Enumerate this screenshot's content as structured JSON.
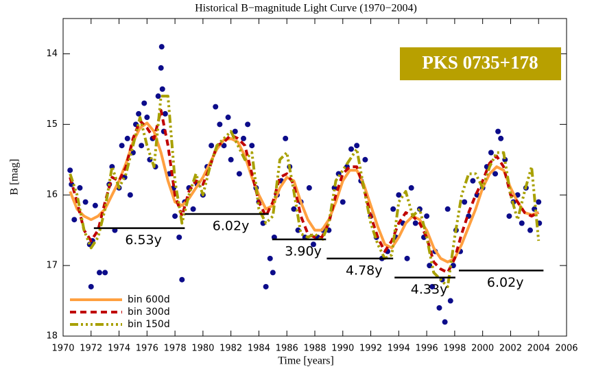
{
  "chart_data": {
    "type": "scatter",
    "title": "Historical B−magnitude Light Curve (1970−2004)",
    "x_label": "Time [years]",
    "y_label": "B [mag]",
    "annotation": "PKS 0735+178",
    "annotation_color": "#b8a000",
    "xlim": [
      1970,
      2006
    ],
    "xticks": [
      1970,
      1972,
      1974,
      1976,
      1978,
      1980,
      1982,
      1984,
      1986,
      1988,
      1990,
      1992,
      1994,
      1996,
      1998,
      2000,
      2002,
      2004,
      2006
    ],
    "ylim": [
      13.5,
      18
    ],
    "y_inverted": true,
    "yticks": [
      14,
      15,
      16,
      17,
      18
    ],
    "legend": "lower left",
    "points": {
      "color": "#0c0c8a",
      "x": [
        1970.5,
        1970.6,
        1970.8,
        1971.2,
        1971.6,
        1971.9,
        1972.0,
        1972.1,
        1972.3,
        1972.6,
        1973.0,
        1973.3,
        1973.5,
        1973.7,
        1974.0,
        1974.2,
        1974.4,
        1974.6,
        1974.8,
        1975.0,
        1975.2,
        1975.4,
        1975.6,
        1975.8,
        1976.0,
        1976.2,
        1976.4,
        1976.6,
        1976.8,
        1977.0,
        1977.05,
        1977.1,
        1977.2,
        1977.3,
        1977.6,
        1977.9,
        1978.0,
        1978.3,
        1978.5,
        1978.7,
        1979.0,
        1979.3,
        1979.6,
        1980.0,
        1980.3,
        1980.6,
        1980.9,
        1981.2,
        1981.5,
        1981.8,
        1982.0,
        1982.3,
        1982.6,
        1982.9,
        1983.2,
        1983.5,
        1983.8,
        1984.0,
        1984.3,
        1984.5,
        1984.8,
        1985.0,
        1985.1,
        1985.3,
        1985.6,
        1985.9,
        1986.2,
        1986.5,
        1986.8,
        1987.0,
        1987.3,
        1987.6,
        1987.9,
        1988.2,
        1988.6,
        1989.0,
        1989.4,
        1989.7,
        1990.0,
        1990.3,
        1990.6,
        1991.0,
        1991.3,
        1991.6,
        1992.0,
        1992.4,
        1992.8,
        1993.2,
        1993.6,
        1993.8,
        1994.0,
        1994.3,
        1994.6,
        1994.9,
        1995.2,
        1995.5,
        1995.8,
        1996.0,
        1996.2,
        1996.4,
        1996.6,
        1996.9,
        1997.1,
        1997.3,
        1997.5,
        1997.7,
        1997.9,
        1998.1,
        1998.4,
        1998.7,
        1999.0,
        1999.3,
        1999.6,
        2000.0,
        2000.3,
        2000.6,
        2000.9,
        2001.1,
        2001.3,
        2001.6,
        2001.9,
        2002.2,
        2002.5,
        2002.8,
        2003.1,
        2003.4,
        2003.7,
        2004.0,
        2004.05
      ],
      "values": [
        15.65,
        15.85,
        16.35,
        15.9,
        16.1,
        16.7,
        17.3,
        16.65,
        16.15,
        17.1,
        17.1,
        15.85,
        15.6,
        16.5,
        15.9,
        15.3,
        15.75,
        15.2,
        16.0,
        15.4,
        15.0,
        14.85,
        15.3,
        14.7,
        14.9,
        15.5,
        15.2,
        15.6,
        14.6,
        14.2,
        13.9,
        14.5,
        15.1,
        14.85,
        15.7,
        15.9,
        16.3,
        16.6,
        17.2,
        16.1,
        15.9,
        16.2,
        15.85,
        16.0,
        15.6,
        15.3,
        14.75,
        15.0,
        15.3,
        14.9,
        15.5,
        15.1,
        15.7,
        15.2,
        15.0,
        15.3,
        15.9,
        16.1,
        16.4,
        17.3,
        16.9,
        17.1,
        16.6,
        16.0,
        15.8,
        15.2,
        15.6,
        16.2,
        16.5,
        16.1,
        16.6,
        15.9,
        16.7,
        16.6,
        16.5,
        16.5,
        15.9,
        15.7,
        16.1,
        15.6,
        15.35,
        15.3,
        15.8,
        15.5,
        16.3,
        16.6,
        16.9,
        16.8,
        16.2,
        16.6,
        16.0,
        16.4,
        16.9,
        15.9,
        16.4,
        16.2,
        16.6,
        16.3,
        17.0,
        17.3,
        16.8,
        17.6,
        17.2,
        17.8,
        16.2,
        17.5,
        17.0,
        16.5,
        16.8,
        16.1,
        16.3,
        15.8,
        16.0,
        15.9,
        15.6,
        15.4,
        15.7,
        15.1,
        15.2,
        15.5,
        16.3,
        16.1,
        16.0,
        16.4,
        15.9,
        16.5,
        16.2,
        16.1,
        16.4
      ]
    },
    "x": [
      1970.5,
      1971,
      1971.5,
      1972,
      1972.5,
      1973,
      1973.5,
      1974,
      1974.5,
      1975,
      1975.5,
      1976,
      1976.5,
      1977,
      1977.5,
      1978,
      1978.5,
      1979,
      1979.5,
      1980,
      1980.5,
      1981,
      1981.5,
      1982,
      1982.5,
      1983,
      1983.5,
      1984,
      1984.5,
      1985,
      1985.5,
      1986,
      1986.5,
      1987,
      1987.5,
      1988,
      1988.5,
      1989,
      1989.5,
      1990,
      1990.5,
      1991,
      1991.5,
      1992,
      1992.5,
      1993,
      1993.5,
      1994,
      1994.5,
      1995,
      1995.5,
      1996,
      1996.5,
      1997,
      1997.5,
      1998,
      1998.5,
      1999,
      1999.5,
      2000,
      2000.5,
      2001,
      2001.5,
      2002,
      2002.5,
      2003,
      2003.5,
      2004
    ],
    "series": [
      {
        "name": "bin 600d",
        "color": "#ffa040",
        "dash": "solid",
        "values": [
          15.95,
          16.2,
          16.3,
          16.35,
          16.3,
          16.2,
          16.0,
          15.8,
          15.55,
          15.25,
          15.05,
          14.98,
          15.1,
          15.4,
          15.8,
          16.1,
          16.15,
          16.05,
          15.9,
          15.75,
          15.55,
          15.35,
          15.22,
          15.2,
          15.25,
          15.45,
          15.75,
          16.0,
          16.2,
          16.15,
          15.9,
          15.75,
          15.8,
          16.1,
          16.35,
          16.5,
          16.5,
          16.35,
          16.1,
          15.8,
          15.65,
          15.65,
          15.85,
          16.15,
          16.45,
          16.7,
          16.75,
          16.6,
          16.4,
          16.3,
          16.35,
          16.5,
          16.75,
          16.9,
          16.95,
          16.9,
          16.7,
          16.45,
          16.2,
          15.9,
          15.7,
          15.6,
          15.65,
          15.9,
          16.1,
          16.25,
          16.28,
          16.25
        ]
      },
      {
        "name": "bin 300d",
        "color": "#c00000",
        "dash": "dashed",
        "values": [
          15.75,
          16.1,
          16.5,
          16.65,
          16.5,
          16.1,
          15.75,
          15.8,
          15.6,
          15.2,
          14.95,
          15.05,
          15.2,
          14.8,
          15.3,
          16.0,
          16.3,
          15.95,
          15.8,
          15.85,
          15.6,
          15.3,
          15.25,
          15.15,
          15.2,
          15.3,
          15.7,
          16.1,
          16.3,
          16.1,
          15.75,
          15.7,
          15.85,
          16.3,
          16.55,
          16.6,
          16.6,
          16.4,
          16.0,
          15.7,
          15.6,
          15.6,
          15.9,
          16.3,
          16.6,
          16.8,
          16.65,
          16.4,
          16.25,
          16.3,
          16.4,
          16.6,
          16.95,
          17.05,
          17.1,
          16.9,
          16.55,
          16.25,
          16.0,
          15.8,
          15.55,
          15.45,
          15.6,
          16.0,
          16.1,
          16.25,
          16.3,
          16.25
        ]
      },
      {
        "name": "bin 150d",
        "color": "#a8a000",
        "dash": "dashdotdot",
        "values": [
          15.7,
          16.0,
          16.5,
          16.75,
          16.6,
          16.2,
          15.6,
          15.9,
          15.7,
          15.3,
          14.9,
          15.3,
          15.6,
          14.6,
          14.6,
          15.8,
          16.4,
          16.0,
          15.7,
          16.0,
          15.6,
          15.3,
          15.2,
          15.1,
          15.3,
          15.5,
          15.4,
          16.2,
          16.4,
          16.3,
          15.5,
          15.4,
          15.95,
          16.55,
          16.6,
          16.55,
          16.65,
          16.4,
          15.8,
          15.65,
          15.5,
          15.35,
          15.9,
          16.4,
          16.7,
          16.9,
          16.85,
          16.1,
          15.95,
          16.3,
          16.2,
          16.6,
          17.1,
          17.2,
          17.3,
          16.6,
          16.0,
          15.7,
          15.7,
          15.9,
          15.6,
          15.4,
          15.4,
          16.0,
          16.35,
          15.95,
          15.6,
          16.65
        ]
      }
    ],
    "periods": [
      {
        "label": "6.53y",
        "start": 1972.2,
        "end": 1978.7,
        "y": 16.47
      },
      {
        "label": "6.02y",
        "start": 1978.7,
        "end": 1984.7,
        "y": 16.27
      },
      {
        "label": "3.90y",
        "start": 1984.95,
        "end": 1988.8,
        "y": 16.63
      },
      {
        "label": "4.78y",
        "start": 1988.85,
        "end": 1993.6,
        "y": 16.9
      },
      {
        "label": "4.33y",
        "start": 1993.7,
        "end": 1998.05,
        "y": 17.17
      },
      {
        "label": "6.02y",
        "start": 1998.3,
        "end": 2004.35,
        "y": 17.07
      }
    ]
  }
}
